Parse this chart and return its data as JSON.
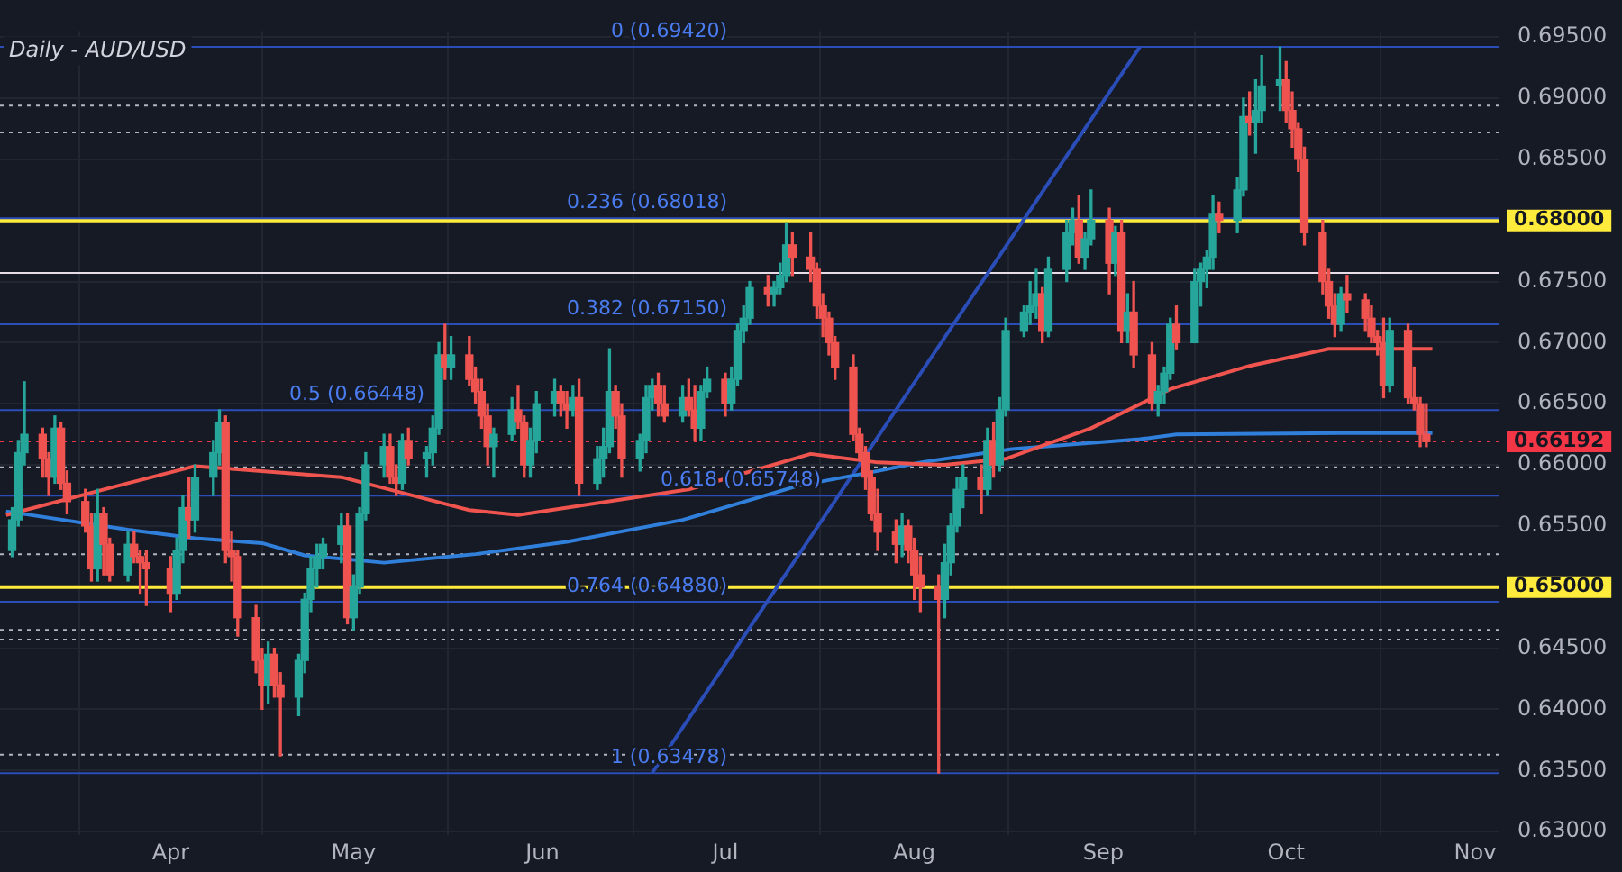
{
  "chart_data": {
    "type": "candlestick",
    "title": "Daily - AUD/USD",
    "x": [
      "--03-06",
      "--03-07",
      "--03-08",
      "--03-11",
      "--03-12",
      "--03-13",
      "--03-14",
      "--03-15",
      "--03-18",
      "--03-19",
      "--03-20",
      "--03-21",
      "--03-22",
      "--03-25",
      "--03-26",
      "--03-27",
      "--03-28",
      "--04-01",
      "--04-02",
      "--04-03",
      "--04-04",
      "--04-05",
      "--04-08",
      "--04-09",
      "--04-10",
      "--04-11",
      "--04-12",
      "--04-15",
      "--04-16",
      "--04-17",
      "--04-18",
      "--04-19",
      "--04-22",
      "--04-23",
      "--04-24",
      "--04-25",
      "--04-26",
      "--04-29",
      "--04-30",
      "--05-01",
      "--05-02",
      "--05-03",
      "--05-06",
      "--05-07",
      "--05-08",
      "--05-09",
      "--05-10",
      "--05-13",
      "--05-14",
      "--05-15",
      "--05-16",
      "--05-17",
      "--05-20",
      "--05-21",
      "--05-22",
      "--05-23",
      "--05-24",
      "--05-27",
      "--05-28",
      "--05-29",
      "--05-30",
      "--05-31",
      "--06-03",
      "--06-04",
      "--06-05",
      "--06-06",
      "--06-07",
      "--06-10",
      "--06-11",
      "--06-12",
      "--06-13",
      "--06-14",
      "--06-17",
      "--06-18",
      "--06-19",
      "--06-20",
      "--06-21",
      "--06-24",
      "--06-25",
      "--06-26",
      "--06-27",
      "--06-28",
      "--07-01",
      "--07-02",
      "--07-03",
      "--07-04",
      "--07-05",
      "--07-08",
      "--07-09",
      "--07-10",
      "--07-11",
      "--07-12",
      "--07-15",
      "--07-16",
      "--07-17",
      "--07-18",
      "--07-19",
      "--07-22",
      "--07-23",
      "--07-24",
      "--07-25",
      "--07-26",
      "--07-29",
      "--07-30",
      "--07-31",
      "--08-01",
      "--08-02",
      "--08-05",
      "--08-06",
      "--08-07",
      "--08-08",
      "--08-09",
      "--08-12",
      "--08-13",
      "--08-14",
      "--08-15",
      "--08-16",
      "--08-19",
      "--08-20",
      "--08-21",
      "--08-22",
      "--08-23",
      "--08-26",
      "--08-27",
      "--08-28",
      "--08-29",
      "--08-30",
      "--09-02",
      "--09-03",
      "--09-04",
      "--09-05",
      "--09-06",
      "--09-09",
      "--09-10",
      "--09-11",
      "--09-12",
      "--09-13",
      "--09-16",
      "--09-17",
      "--09-18",
      "--09-19",
      "--09-20",
      "--09-23",
      "--09-24",
      "--09-25",
      "--09-26",
      "--09-27",
      "--09-30",
      "--10-01",
      "--10-02",
      "--10-03",
      "--10-04",
      "--10-07",
      "--10-08",
      "--10-09",
      "--10-10",
      "--10-11",
      "--10-14",
      "--10-15",
      "--10-16",
      "--10-17",
      "--10-18",
      "--10-21",
      "--10-22",
      "--10-23",
      "--10-24"
    ],
    "ohlc": [
      [
        0.653,
        0.6565,
        0.6525,
        0.6555
      ],
      [
        0.6555,
        0.662,
        0.655,
        0.661
      ],
      [
        0.661,
        0.6668,
        0.66,
        0.6625
      ],
      [
        0.6625,
        0.663,
        0.659,
        0.6605
      ],
      [
        0.6605,
        0.661,
        0.6575,
        0.659
      ],
      [
        0.659,
        0.664,
        0.6585,
        0.663
      ],
      [
        0.663,
        0.6635,
        0.658,
        0.6585
      ],
      [
        0.6585,
        0.6595,
        0.656,
        0.657
      ],
      [
        0.657,
        0.658,
        0.6545,
        0.655
      ],
      [
        0.655,
        0.656,
        0.6505,
        0.6515
      ],
      [
        0.6515,
        0.658,
        0.6505,
        0.656
      ],
      [
        0.656,
        0.6565,
        0.651,
        0.6535
      ],
      [
        0.6535,
        0.654,
        0.6505,
        0.651
      ],
      [
        0.651,
        0.6545,
        0.6505,
        0.6535
      ],
      [
        0.6535,
        0.6545,
        0.652,
        0.6525
      ],
      [
        0.6525,
        0.653,
        0.6495,
        0.652
      ],
      [
        0.652,
        0.653,
        0.6485,
        0.6515
      ],
      [
        0.6515,
        0.6525,
        0.648,
        0.6495
      ],
      [
        0.6495,
        0.654,
        0.649,
        0.653
      ],
      [
        0.653,
        0.6575,
        0.652,
        0.6565
      ],
      [
        0.6565,
        0.659,
        0.654,
        0.6555
      ],
      [
        0.6555,
        0.66,
        0.6545,
        0.659
      ],
      [
        0.659,
        0.662,
        0.6575,
        0.661
      ],
      [
        0.661,
        0.6645,
        0.66,
        0.6635
      ],
      [
        0.6635,
        0.664,
        0.652,
        0.653
      ],
      [
        0.653,
        0.6545,
        0.6505,
        0.6525
      ],
      [
        0.6525,
        0.653,
        0.646,
        0.6475
      ],
      [
        0.6475,
        0.6485,
        0.643,
        0.644
      ],
      [
        0.644,
        0.645,
        0.64,
        0.642
      ],
      [
        0.642,
        0.6455,
        0.6405,
        0.6445
      ],
      [
        0.6445,
        0.645,
        0.641,
        0.642
      ],
      [
        0.642,
        0.643,
        0.6362,
        0.641
      ],
      [
        0.641,
        0.6445,
        0.6395,
        0.644
      ],
      [
        0.644,
        0.6495,
        0.643,
        0.649
      ],
      [
        0.649,
        0.6525,
        0.648,
        0.6515
      ],
      [
        0.6515,
        0.6535,
        0.65,
        0.6525
      ],
      [
        0.6525,
        0.654,
        0.6515,
        0.6535
      ],
      [
        0.6535,
        0.656,
        0.652,
        0.655
      ],
      [
        0.655,
        0.656,
        0.647,
        0.6475
      ],
      [
        0.6475,
        0.651,
        0.6465,
        0.65
      ],
      [
        0.65,
        0.6565,
        0.6495,
        0.656
      ],
      [
        0.656,
        0.661,
        0.6555,
        0.66
      ],
      [
        0.66,
        0.6625,
        0.659,
        0.6615
      ],
      [
        0.6615,
        0.6625,
        0.6585,
        0.659
      ],
      [
        0.659,
        0.66,
        0.6575,
        0.6585
      ],
      [
        0.6585,
        0.6625,
        0.658,
        0.662
      ],
      [
        0.662,
        0.663,
        0.66,
        0.6605
      ],
      [
        0.6605,
        0.6615,
        0.659,
        0.661
      ],
      [
        0.661,
        0.664,
        0.66,
        0.663
      ],
      [
        0.663,
        0.67,
        0.6625,
        0.669
      ],
      [
        0.669,
        0.6715,
        0.667,
        0.668
      ],
      [
        0.668,
        0.6705,
        0.667,
        0.669
      ],
      [
        0.669,
        0.6705,
        0.6665,
        0.667
      ],
      [
        0.667,
        0.668,
        0.665,
        0.666
      ],
      [
        0.666,
        0.667,
        0.663,
        0.664
      ],
      [
        0.664,
        0.665,
        0.66,
        0.6615
      ],
      [
        0.6615,
        0.663,
        0.659,
        0.6625
      ],
      [
        0.6625,
        0.6655,
        0.662,
        0.6645
      ],
      [
        0.6645,
        0.6665,
        0.663,
        0.6635
      ],
      [
        0.6635,
        0.664,
        0.659,
        0.66
      ],
      [
        0.66,
        0.663,
        0.659,
        0.662
      ],
      [
        0.662,
        0.666,
        0.661,
        0.665
      ],
      [
        0.665,
        0.667,
        0.664,
        0.666
      ],
      [
        0.666,
        0.6665,
        0.664,
        0.665
      ],
      [
        0.665,
        0.666,
        0.663,
        0.6645
      ],
      [
        0.6645,
        0.6665,
        0.664,
        0.6655
      ],
      [
        0.6655,
        0.667,
        0.6575,
        0.6585
      ],
      [
        0.6585,
        0.6615,
        0.658,
        0.6605
      ],
      [
        0.6605,
        0.663,
        0.659,
        0.6615
      ],
      [
        0.6615,
        0.6695,
        0.661,
        0.666
      ],
      [
        0.666,
        0.6665,
        0.663,
        0.664
      ],
      [
        0.664,
        0.665,
        0.659,
        0.6605
      ],
      [
        0.6605,
        0.6625,
        0.6595,
        0.662
      ],
      [
        0.662,
        0.6665,
        0.661,
        0.6655
      ],
      [
        0.6655,
        0.667,
        0.6645,
        0.6665
      ],
      [
        0.6665,
        0.6675,
        0.664,
        0.665
      ],
      [
        0.665,
        0.6665,
        0.6635,
        0.664
      ],
      [
        0.664,
        0.6665,
        0.6635,
        0.6655
      ],
      [
        0.6655,
        0.667,
        0.664,
        0.6645
      ],
      [
        0.6645,
        0.6665,
        0.662,
        0.663
      ],
      [
        0.663,
        0.6665,
        0.662,
        0.666
      ],
      [
        0.666,
        0.668,
        0.6655,
        0.667
      ],
      [
        0.667,
        0.6675,
        0.664,
        0.665
      ],
      [
        0.665,
        0.668,
        0.6645,
        0.667
      ],
      [
        0.667,
        0.6715,
        0.6665,
        0.671
      ],
      [
        0.671,
        0.673,
        0.67,
        0.672
      ],
      [
        0.672,
        0.675,
        0.6715,
        0.6745
      ],
      [
        0.6745,
        0.6755,
        0.673,
        0.674
      ],
      [
        0.674,
        0.675,
        0.673,
        0.6745
      ],
      [
        0.6745,
        0.6765,
        0.674,
        0.6755
      ],
      [
        0.6755,
        0.6798,
        0.675,
        0.678
      ],
      [
        0.678,
        0.679,
        0.6755,
        0.677
      ],
      [
        0.677,
        0.679,
        0.675,
        0.676
      ],
      [
        0.676,
        0.6765,
        0.672,
        0.673
      ],
      [
        0.673,
        0.674,
        0.6705,
        0.672
      ],
      [
        0.672,
        0.6725,
        0.669,
        0.67
      ],
      [
        0.67,
        0.6705,
        0.667,
        0.668
      ],
      [
        0.668,
        0.669,
        0.662,
        0.6625
      ],
      [
        0.6625,
        0.663,
        0.6605,
        0.661
      ],
      [
        0.661,
        0.6615,
        0.658,
        0.659
      ],
      [
        0.659,
        0.6595,
        0.6555,
        0.656
      ],
      [
        0.656,
        0.658,
        0.653,
        0.6545
      ],
      [
        0.6545,
        0.6555,
        0.652,
        0.6535
      ],
      [
        0.6535,
        0.656,
        0.6525,
        0.655
      ],
      [
        0.655,
        0.6555,
        0.652,
        0.653
      ],
      [
        0.653,
        0.654,
        0.649,
        0.651
      ],
      [
        0.651,
        0.6525,
        0.648,
        0.65
      ],
      [
        0.65,
        0.651,
        0.6348,
        0.649
      ],
      [
        0.649,
        0.6535,
        0.6475,
        0.652
      ],
      [
        0.652,
        0.656,
        0.651,
        0.655
      ],
      [
        0.655,
        0.659,
        0.6545,
        0.658
      ],
      [
        0.658,
        0.66,
        0.6565,
        0.659
      ],
      [
        0.659,
        0.66,
        0.656,
        0.658
      ],
      [
        0.658,
        0.663,
        0.6575,
        0.662
      ],
      [
        0.662,
        0.6635,
        0.659,
        0.66
      ],
      [
        0.66,
        0.6655,
        0.6595,
        0.6645
      ],
      [
        0.6645,
        0.672,
        0.664,
        0.671
      ],
      [
        0.671,
        0.673,
        0.6705,
        0.6725
      ],
      [
        0.6725,
        0.675,
        0.6715,
        0.673
      ],
      [
        0.673,
        0.676,
        0.672,
        0.674
      ],
      [
        0.674,
        0.6745,
        0.67,
        0.671
      ],
      [
        0.671,
        0.677,
        0.6705,
        0.676
      ],
      [
        0.676,
        0.68,
        0.675,
        0.679
      ],
      [
        0.679,
        0.681,
        0.678,
        0.68
      ],
      [
        0.68,
        0.682,
        0.6765,
        0.677
      ],
      [
        0.677,
        0.679,
        0.676,
        0.6785
      ],
      [
        0.6785,
        0.6825,
        0.678,
        0.68
      ],
      [
        0.68,
        0.681,
        0.674,
        0.6765
      ],
      [
        0.6765,
        0.6795,
        0.6755,
        0.679
      ],
      [
        0.679,
        0.68,
        0.67,
        0.671
      ],
      [
        0.671,
        0.674,
        0.67,
        0.6725
      ],
      [
        0.6725,
        0.675,
        0.668,
        0.669
      ],
      [
        0.669,
        0.67,
        0.6645,
        0.665
      ],
      [
        0.665,
        0.6665,
        0.664,
        0.666
      ],
      [
        0.666,
        0.668,
        0.665,
        0.6675
      ],
      [
        0.6675,
        0.672,
        0.667,
        0.6715
      ],
      [
        0.6715,
        0.673,
        0.6695,
        0.67
      ],
      [
        0.67,
        0.676,
        0.67,
        0.675
      ],
      [
        0.675,
        0.6765,
        0.673,
        0.676
      ],
      [
        0.676,
        0.6775,
        0.6745,
        0.677
      ],
      [
        0.677,
        0.682,
        0.676,
        0.6805
      ],
      [
        0.6805,
        0.6815,
        0.679,
        0.68
      ],
      [
        0.68,
        0.6835,
        0.679,
        0.6825
      ],
      [
        0.6825,
        0.69,
        0.682,
        0.6885
      ],
      [
        0.6885,
        0.6905,
        0.687,
        0.688
      ],
      [
        0.688,
        0.6915,
        0.6855,
        0.689
      ],
      [
        0.689,
        0.6935,
        0.688,
        0.691
      ],
      [
        0.691,
        0.6942,
        0.689,
        0.6915
      ],
      [
        0.6915,
        0.693,
        0.688,
        0.689
      ],
      [
        0.689,
        0.6905,
        0.686,
        0.6875
      ],
      [
        0.6875,
        0.688,
        0.684,
        0.685
      ],
      [
        0.685,
        0.686,
        0.678,
        0.679
      ],
      [
        0.679,
        0.68,
        0.674,
        0.675
      ],
      [
        0.675,
        0.676,
        0.672,
        0.673
      ],
      [
        0.673,
        0.674,
        0.6705,
        0.6715
      ],
      [
        0.6715,
        0.6745,
        0.671,
        0.674
      ],
      [
        0.674,
        0.6755,
        0.6725,
        0.6735
      ],
      [
        0.6735,
        0.674,
        0.671,
        0.672
      ],
      [
        0.672,
        0.673,
        0.67,
        0.6705
      ],
      [
        0.6705,
        0.671,
        0.669,
        0.67
      ],
      [
        0.67,
        0.672,
        0.6655,
        0.6665
      ],
      [
        0.6665,
        0.672,
        0.666,
        0.671
      ],
      [
        0.671,
        0.6715,
        0.665,
        0.6655
      ],
      [
        0.6655,
        0.668,
        0.6645,
        0.665
      ],
      [
        0.665,
        0.6655,
        0.6615,
        0.6625
      ],
      [
        0.6625,
        0.665,
        0.6615,
        0.6619
      ]
    ],
    "series": [
      {
        "type": "line",
        "color": "#f0544f",
        "x": [
          "--03-05",
          "--03-25",
          "--04-05",
          "--04-29",
          "--05-20",
          "--05-28",
          "--06-25",
          "--07-15",
          "--07-26",
          "--08-06",
          "--08-16",
          "--08-30",
          "--09-12",
          "--09-25",
          "--10-08",
          "--10-25"
        ],
        "values": [
          0.6559,
          0.6585,
          0.6599,
          0.659,
          0.6563,
          0.6559,
          0.658,
          0.6609,
          0.6602,
          0.66,
          0.6605,
          0.663,
          0.6662,
          0.6681,
          0.6695,
          0.6695
        ]
      },
      {
        "type": "line",
        "color": "#2f7fdb",
        "x": [
          "--03-05",
          "--03-25",
          "--04-05",
          "--04-16",
          "--04-23",
          "--05-06",
          "--05-21",
          "--06-05",
          "--06-24",
          "--07-13",
          "--07-26",
          "--08-02",
          "--08-17",
          "--09-07",
          "--09-13",
          "--10-10",
          "--10-25"
        ],
        "values": [
          0.6562,
          0.6547,
          0.654,
          0.6536,
          0.6526,
          0.652,
          0.6527,
          0.6537,
          0.6555,
          0.6583,
          0.6595,
          0.6602,
          0.6613,
          0.6621,
          0.6625,
          0.6626,
          0.6626
        ]
      },
      {
        "type": "line",
        "color": "#2a4db8",
        "x": [
          "--06-19",
          "--09-07"
        ],
        "values": [
          0.6348,
          0.6942
        ]
      }
    ],
    "ref_lines": [
      {
        "axis": "y",
        "value": 0.68,
        "label": "0.68000",
        "color": "#ffeb3b",
        "line_style": "solid"
      },
      {
        "axis": "y",
        "value": 0.65,
        "label": "0.65000",
        "color": "#ffeb3b",
        "line_style": "solid"
      },
      {
        "axis": "y",
        "value": 0.6757,
        "color": "#e8dde6",
        "line_style": "solid"
      },
      {
        "axis": "y",
        "value": 0.6942,
        "label": "0 (0.69420)",
        "color": "#2a4db8",
        "line_style": "solid"
      },
      {
        "axis": "y",
        "value": 0.68018,
        "label": "0.236 (0.68018)",
        "color": "#2a4db8",
        "line_style": "solid"
      },
      {
        "axis": "y",
        "value": 0.6715,
        "label": "0.382 (0.67150)",
        "color": "#2a4db8",
        "line_style": "solid"
      },
      {
        "axis": "y",
        "value": 0.66448,
        "label": "0.5 (0.66448)",
        "color": "#2a4db8",
        "line_style": "solid"
      },
      {
        "axis": "y",
        "value": 0.65748,
        "label": "0.618 (0.65748)",
        "color": "#2a4db8",
        "line_style": "solid"
      },
      {
        "axis": "y",
        "value": 0.6488,
        "label": "0.764 (0.64880)",
        "color": "#2a4db8",
        "line_style": "solid"
      },
      {
        "axis": "y",
        "value": 0.63478,
        "label": "1 (0.63478)",
        "color": "#2a4db8",
        "line_style": "solid"
      },
      {
        "axis": "y",
        "value": 0.6894,
        "color": "#b2b5be",
        "line_style": "dotted"
      },
      {
        "axis": "y",
        "value": 0.6872,
        "color": "#b2b5be",
        "line_style": "dotted"
      },
      {
        "axis": "y",
        "value": 0.6598,
        "color": "#b2b5be",
        "line_style": "dotted"
      },
      {
        "axis": "y",
        "value": 0.6527,
        "color": "#b2b5be",
        "line_style": "dotted"
      },
      {
        "axis": "y",
        "value": 0.6465,
        "color": "#b2b5be",
        "line_style": "dotted"
      },
      {
        "axis": "y",
        "value": 0.6457,
        "color": "#b2b5be",
        "line_style": "dotted"
      },
      {
        "axis": "y",
        "value": 0.6363,
        "color": "#b2b5be",
        "line_style": "dotted"
      },
      {
        "axis": "y",
        "value": 0.66192,
        "label": "0.66192",
        "color": "#f23645",
        "line_style": "dotted"
      }
    ],
    "xlim": [
      "--03-04",
      "--11-05"
    ],
    "xticks": [
      {
        "value": "--04-01",
        "label": "Apr"
      },
      {
        "value": "--05-01",
        "label": "May"
      },
      {
        "value": "--06-01",
        "label": "Jun"
      },
      {
        "value": "--07-01",
        "label": "Jul"
      },
      {
        "value": "--08-01",
        "label": "Aug"
      },
      {
        "value": "--09-01",
        "label": "Sep"
      },
      {
        "value": "--10-01",
        "label": "Oct"
      },
      {
        "value": "--11-01",
        "label": "Nov"
      }
    ],
    "ylim": [
      0.6297,
      0.6955
    ],
    "yticks": [
      {
        "value": 0.63,
        "label": "0.63000"
      },
      {
        "value": 0.635,
        "label": "0.63500"
      },
      {
        "value": 0.64,
        "label": "0.64000"
      },
      {
        "value": 0.645,
        "label": "0.64500"
      },
      {
        "value": 0.65,
        "label": null
      },
      {
        "value": 0.655,
        "label": "0.65500"
      },
      {
        "value": 0.66,
        "label": "0.66000"
      },
      {
        "value": 0.665,
        "label": "0.66500"
      },
      {
        "value": 0.67,
        "label": "0.67000"
      },
      {
        "value": 0.675,
        "label": "0.67500"
      },
      {
        "value": 0.68,
        "label": null
      },
      {
        "value": 0.685,
        "label": "0.68500"
      },
      {
        "value": 0.69,
        "label": "0.69000"
      },
      {
        "value": 0.695,
        "label": "0.69500"
      }
    ],
    "grid": true,
    "legend": false
  }
}
